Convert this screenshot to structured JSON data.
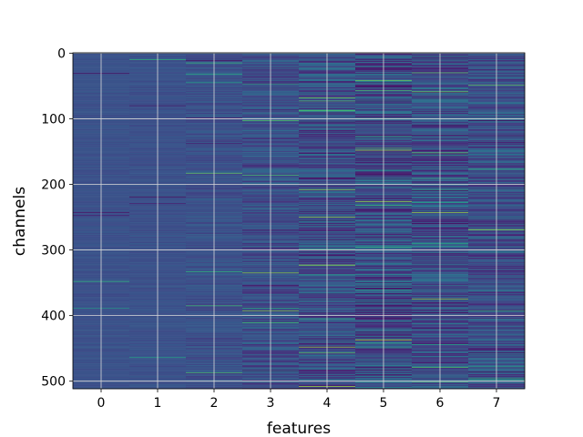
{
  "chart_data": {
    "type": "heatmap",
    "title": "",
    "xlabel": "features",
    "ylabel": "channels",
    "x_categories": [
      "0",
      "1",
      "2",
      "3",
      "4",
      "5",
      "6",
      "7"
    ],
    "x_range": [
      -0.5,
      7.5
    ],
    "y_range": [
      0,
      511
    ],
    "y_ticks": [
      "0",
      "100",
      "200",
      "300",
      "400",
      "500"
    ],
    "y_inverted": true,
    "grid": true,
    "colormap": "viridis",
    "rows": 512,
    "columns": 8,
    "column_variability": [
      0.05,
      0.06,
      0.12,
      0.22,
      0.32,
      0.4,
      0.36,
      0.3
    ],
    "base_color": "#3b528b",
    "highlight_color": "#fde725"
  }
}
